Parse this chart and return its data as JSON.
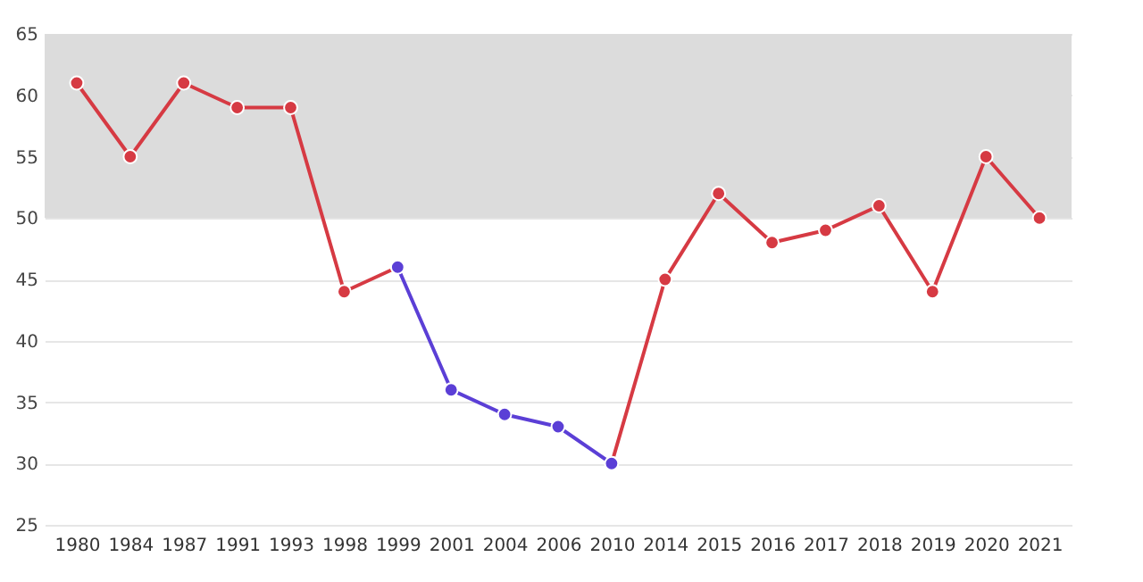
{
  "chart_data": {
    "type": "line",
    "categories": [
      "1980",
      "1984",
      "1987",
      "1991",
      "1993",
      "1998",
      "1999",
      "2001",
      "2004",
      "2006",
      "2010",
      "2014",
      "2015",
      "2016",
      "2017",
      "2018",
      "2019",
      "2020",
      "2021"
    ],
    "series": [
      {
        "color": "#d63a43",
        "values": [
          61,
          55,
          61,
          59,
          59,
          44,
          46,
          null,
          null,
          null,
          30,
          45,
          52,
          48,
          49,
          51,
          44,
          55,
          50
        ]
      },
      {
        "color": "#5b3fd6",
        "values": [
          null,
          null,
          null,
          null,
          null,
          null,
          46,
          36,
          34,
          33,
          30,
          null,
          null,
          null,
          null,
          null,
          null,
          null,
          null
        ]
      }
    ],
    "ylim": [
      25,
      65
    ],
    "yticks": [
      25,
      30,
      35,
      40,
      45,
      50,
      55,
      60,
      65
    ],
    "bands": [
      {
        "axis": "y",
        "from": 50,
        "to": 65,
        "color": "#dcdcdc"
      }
    ],
    "grid": "y",
    "marker": "circle",
    "line_style": "solid"
  }
}
